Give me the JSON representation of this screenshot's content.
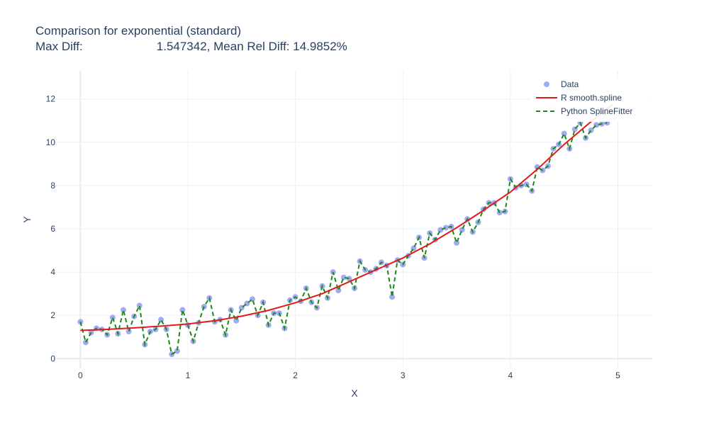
{
  "chart_data": {
    "type": "line",
    "title": "Comparison for exponential (standard)",
    "subtitle_label": "Max Diff:",
    "subtitle_value": "1.547342, Mean Rel Diff: 14.9852%",
    "xlabel": "X",
    "ylabel": "Y",
    "xlim": [
      -0.22,
      5.32
    ],
    "ylim": [
      -0.45,
      13.3
    ],
    "x_ticks": [
      0,
      1,
      2,
      3,
      4,
      5
    ],
    "y_ticks": [
      0,
      2,
      4,
      6,
      8,
      10,
      12
    ],
    "grid": true,
    "legend_position": "top-right",
    "colors": {
      "data": "#a2aaf5",
      "r_spline": "#e31a1c",
      "py_spline": "#1a8a1a",
      "grid": "#ebf0f8",
      "zero_line": "#e6eaf2"
    },
    "series": [
      {
        "name": "Data",
        "mode": "markers",
        "x": [
          0.0,
          0.05,
          0.1,
          0.15,
          0.2,
          0.25,
          0.3,
          0.35,
          0.4,
          0.45,
          0.5,
          0.55,
          0.6,
          0.65,
          0.7,
          0.75,
          0.8,
          0.85,
          0.9,
          0.95,
          1.0,
          1.05,
          1.1,
          1.15,
          1.2,
          1.25,
          1.3,
          1.35,
          1.4,
          1.45,
          1.5,
          1.55,
          1.6,
          1.65,
          1.7,
          1.75,
          1.8,
          1.85,
          1.9,
          1.95,
          2.0,
          2.05,
          2.1,
          2.15,
          2.2,
          2.25,
          2.3,
          2.35,
          2.4,
          2.45,
          2.5,
          2.55,
          2.6,
          2.65,
          2.7,
          2.75,
          2.8,
          2.85,
          2.9,
          2.95,
          3.0,
          3.05,
          3.1,
          3.15,
          3.2,
          3.25,
          3.3,
          3.35,
          3.4,
          3.45,
          3.5,
          3.55,
          3.6,
          3.65,
          3.7,
          3.75,
          3.8,
          3.85,
          3.9,
          3.95,
          4.0,
          4.05,
          4.1,
          4.15,
          4.2,
          4.25,
          4.3,
          4.35,
          4.4,
          4.45,
          4.5,
          4.55,
          4.6,
          4.65,
          4.7,
          4.75,
          4.8,
          4.85,
          4.9
        ],
        "y": [
          1.7,
          0.75,
          1.2,
          1.4,
          1.35,
          1.1,
          1.9,
          1.15,
          2.25,
          1.25,
          1.95,
          2.45,
          0.65,
          1.25,
          1.35,
          1.8,
          1.35,
          0.2,
          0.35,
          2.25,
          1.55,
          0.8,
          1.65,
          2.4,
          2.8,
          1.7,
          1.8,
          1.1,
          2.25,
          1.75,
          2.35,
          2.55,
          2.75,
          2.0,
          2.6,
          1.55,
          2.1,
          2.1,
          1.4,
          2.7,
          2.85,
          2.65,
          3.25,
          2.6,
          2.35,
          3.35,
          2.8,
          4.0,
          3.15,
          3.75,
          3.7,
          3.25,
          4.5,
          4.1,
          4.0,
          4.15,
          4.45,
          4.3,
          2.85,
          4.55,
          4.35,
          4.75,
          5.1,
          5.6,
          4.65,
          5.8,
          5.5,
          5.95,
          6.05,
          6.1,
          5.35,
          5.95,
          6.45,
          5.85,
          6.3,
          6.9,
          7.2,
          7.2,
          6.75,
          6.8,
          8.3,
          7.9,
          8.0,
          8.05,
          7.75,
          8.85,
          8.7,
          8.9,
          9.7,
          9.9,
          10.4,
          9.7,
          10.6,
          10.9,
          10.2,
          10.55,
          10.8,
          10.85,
          10.9
        ]
      },
      {
        "name": "R smooth.spline",
        "mode": "lines",
        "x": [
          0.0,
          0.25,
          0.5,
          0.75,
          1.0,
          1.25,
          1.5,
          1.75,
          2.0,
          2.25,
          2.5,
          2.75,
          3.0,
          3.25,
          3.5,
          3.75,
          4.0,
          4.25,
          4.5,
          4.75,
          4.95
        ],
        "y": [
          1.3,
          1.35,
          1.42,
          1.5,
          1.6,
          1.75,
          1.96,
          2.23,
          2.58,
          3.0,
          3.55,
          4.1,
          4.65,
          5.3,
          6.05,
          6.85,
          7.7,
          8.75,
          9.9,
          10.95,
          11.75
        ]
      },
      {
        "name": "Python SplineFitter",
        "mode": "lines-dashed",
        "x": [
          0.0,
          0.05,
          0.1,
          0.15,
          0.2,
          0.25,
          0.3,
          0.35,
          0.4,
          0.45,
          0.5,
          0.55,
          0.6,
          0.65,
          0.7,
          0.75,
          0.8,
          0.85,
          0.9,
          0.95,
          1.0,
          1.05,
          1.1,
          1.15,
          1.2,
          1.25,
          1.3,
          1.35,
          1.4,
          1.45,
          1.5,
          1.55,
          1.6,
          1.65,
          1.7,
          1.75,
          1.8,
          1.85,
          1.9,
          1.95,
          2.0,
          2.05,
          2.1,
          2.15,
          2.2,
          2.25,
          2.3,
          2.35,
          2.4,
          2.45,
          2.5,
          2.55,
          2.6,
          2.65,
          2.7,
          2.75,
          2.8,
          2.85,
          2.9,
          2.95,
          3.0,
          3.05,
          3.1,
          3.15,
          3.2,
          3.25,
          3.3,
          3.35,
          3.4,
          3.45,
          3.5,
          3.55,
          3.6,
          3.65,
          3.7,
          3.75,
          3.8,
          3.85,
          3.9,
          3.95,
          4.0,
          4.05,
          4.1,
          4.15,
          4.2,
          4.25,
          4.3,
          4.35,
          4.4,
          4.45,
          4.5,
          4.55,
          4.6,
          4.65,
          4.7,
          4.75,
          4.8,
          4.85,
          4.9
        ],
        "y": [
          1.7,
          0.75,
          1.2,
          1.4,
          1.35,
          1.1,
          1.9,
          1.15,
          2.25,
          1.25,
          1.95,
          2.45,
          0.65,
          1.25,
          1.35,
          1.8,
          1.35,
          0.2,
          0.35,
          2.25,
          1.55,
          0.8,
          1.65,
          2.4,
          2.8,
          1.7,
          1.8,
          1.1,
          2.25,
          1.75,
          2.35,
          2.55,
          2.75,
          2.0,
          2.6,
          1.55,
          2.1,
          2.1,
          1.4,
          2.7,
          2.85,
          2.65,
          3.25,
          2.6,
          2.35,
          3.35,
          2.8,
          4.0,
          3.15,
          3.75,
          3.7,
          3.25,
          4.5,
          4.1,
          4.0,
          4.15,
          4.45,
          4.3,
          2.85,
          4.55,
          4.35,
          4.75,
          5.1,
          5.6,
          4.65,
          5.8,
          5.5,
          5.95,
          6.05,
          6.1,
          5.35,
          5.95,
          6.45,
          5.85,
          6.3,
          6.9,
          7.2,
          7.2,
          6.75,
          6.8,
          8.3,
          7.9,
          8.0,
          8.05,
          7.75,
          8.85,
          8.7,
          8.9,
          9.7,
          9.9,
          10.4,
          9.7,
          10.6,
          10.9,
          10.2,
          10.55,
          10.8,
          10.85,
          10.9
        ]
      }
    ]
  }
}
